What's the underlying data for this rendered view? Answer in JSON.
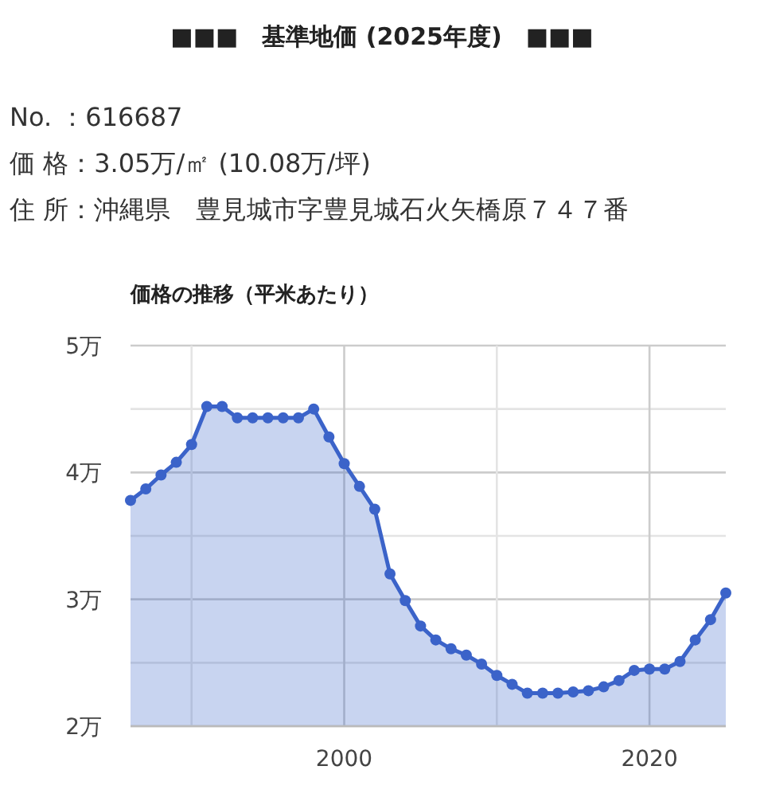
{
  "chart_data": {
    "type": "area",
    "title": "■■■　基準地価 (2025年度)　■■■",
    "subtitle": "価格の推移（平米あたり）",
    "annotations": [
      "No. ：616687",
      "価 格：3.05万/㎡ (10.08万/坪)",
      "住 所：沖縄県　豊見城市字豊見城石火矢橋原７４７番"
    ],
    "x": [
      1986,
      1987,
      1988,
      1989,
      1990,
      1991,
      1992,
      1993,
      1994,
      1995,
      1996,
      1997,
      1998,
      1999,
      2000,
      2001,
      2002,
      2003,
      2004,
      2005,
      2006,
      2007,
      2008,
      2009,
      2010,
      2011,
      2012,
      2013,
      2014,
      2015,
      2016,
      2017,
      2018,
      2019,
      2020,
      2021,
      2022,
      2023,
      2024,
      2025
    ],
    "series": [
      {
        "color": "#3b63c9",
        "values": [
          3.78,
          3.87,
          3.98,
          4.08,
          4.22,
          4.52,
          4.52,
          4.43,
          4.43,
          4.43,
          4.43,
          4.43,
          4.5,
          4.28,
          4.07,
          3.89,
          3.71,
          3.2,
          2.99,
          2.79,
          2.68,
          2.61,
          2.56,
          2.49,
          2.4,
          2.33,
          2.26,
          2.26,
          2.26,
          2.27,
          2.28,
          2.31,
          2.36,
          2.44,
          2.45,
          2.45,
          2.51,
          2.68,
          2.84,
          3.05
        ]
      }
    ],
    "xlim": [
      1986,
      2025
    ],
    "xticks": [
      {
        "value": 1990,
        "label": null
      },
      2000,
      {
        "value": 2010,
        "label": null
      },
      2020
    ],
    "ylim": [
      2,
      5
    ],
    "yticks": [
      {
        "value": 2,
        "label": "2万"
      },
      {
        "value": 2.5,
        "label": null
      },
      {
        "value": 3,
        "label": "3万"
      },
      {
        "value": 3.5,
        "label": null
      },
      {
        "value": 4,
        "label": "4万"
      },
      {
        "value": 4.5,
        "label": null
      },
      {
        "value": 5,
        "label": "5万"
      }
    ],
    "grid": true,
    "marker": "circle",
    "line_style": "solid"
  }
}
